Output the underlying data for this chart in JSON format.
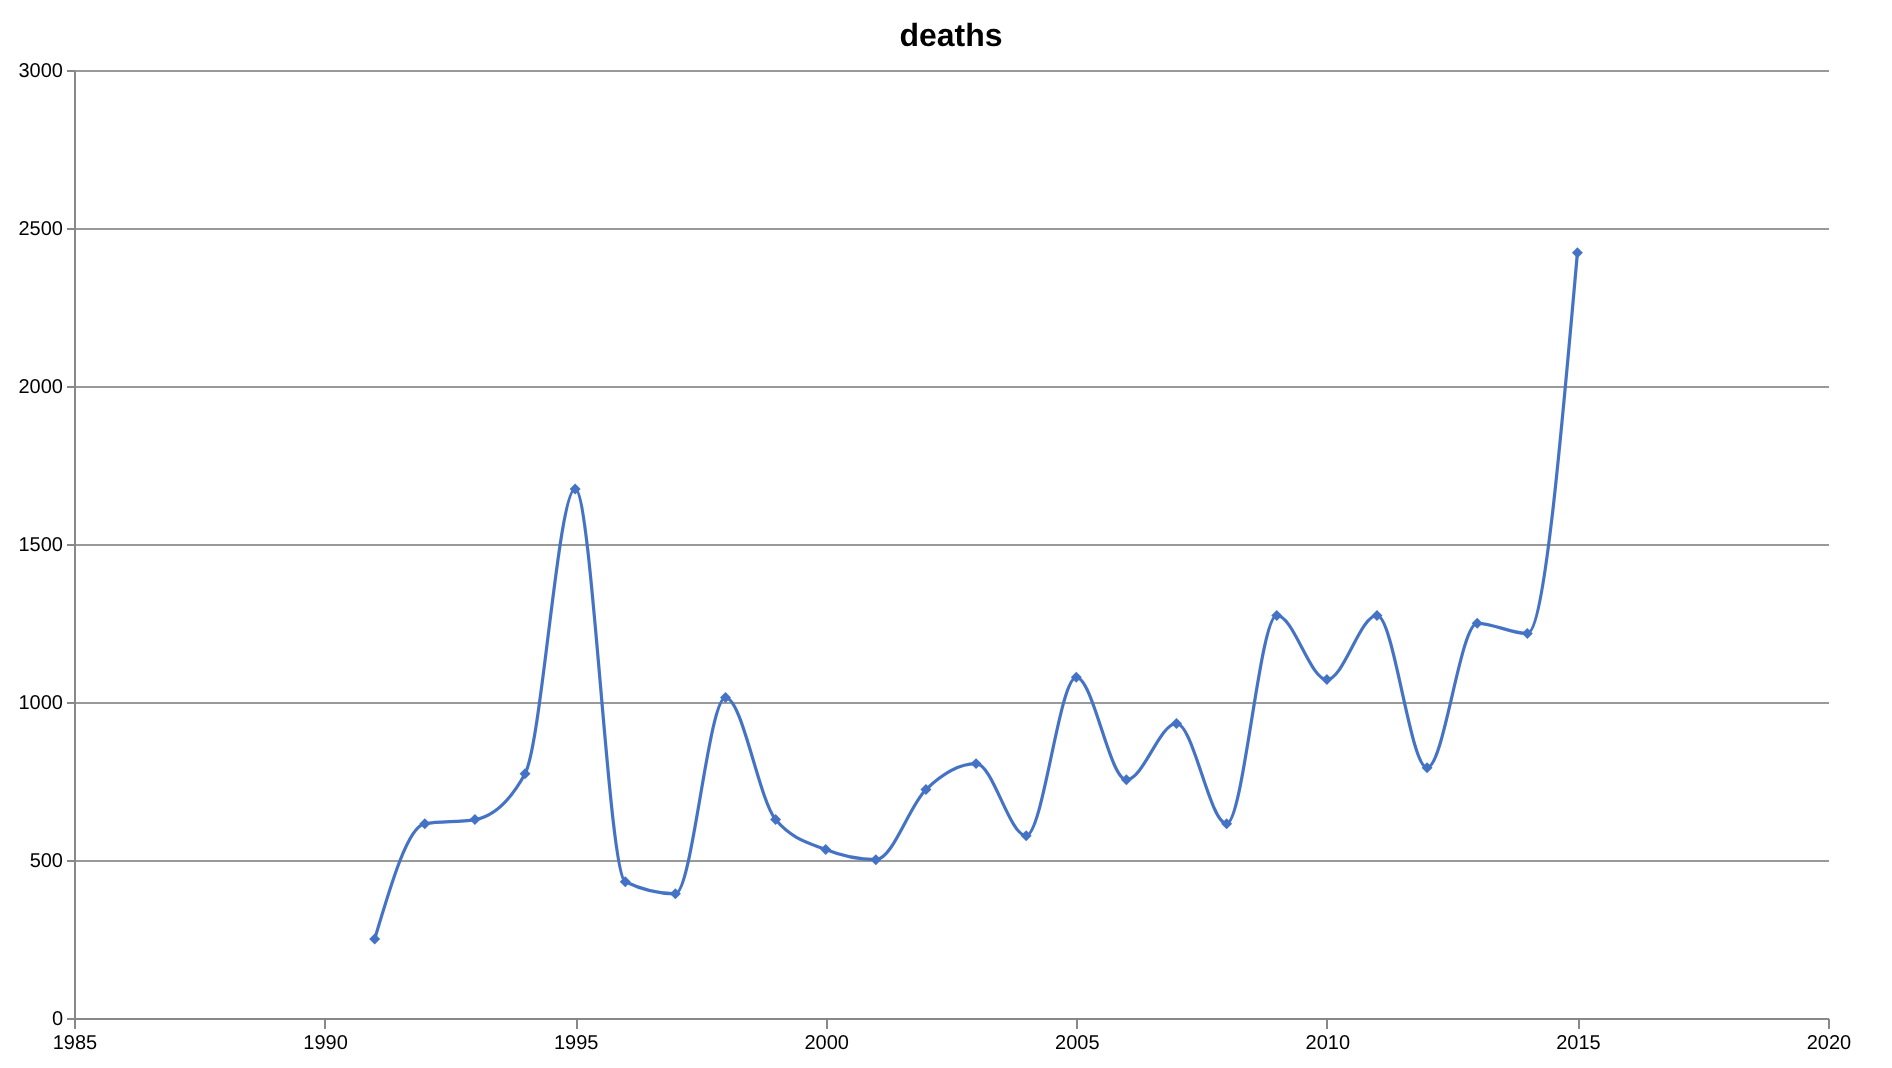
{
  "chart_data": {
    "type": "line",
    "title": "deaths",
    "x": [
      1991,
      1992,
      1993,
      1994,
      1995,
      1996,
      1997,
      1998,
      1999,
      2000,
      2001,
      2002,
      2003,
      2004,
      2005,
      2006,
      2007,
      2008,
      2009,
      2010,
      2011,
      2012,
      2013,
      2014,
      2015
    ],
    "series": [
      {
        "color": "#4472c4",
        "values": [
          250,
          615,
          628,
          773,
          1674,
          431,
          393,
          1014,
          628,
          533,
          501,
          723,
          805,
          577,
          1078,
          754,
          932,
          615,
          1274,
          1071,
          1274,
          792,
          1249,
          1217,
          2422
        ]
      }
    ],
    "xlim": [
      1985,
      2020
    ],
    "xticks": [
      1985,
      1990,
      1995,
      2000,
      2005,
      2010,
      2015,
      2020
    ],
    "ylim": [
      0,
      3000
    ],
    "yticks": [
      0,
      500,
      1000,
      1500,
      2000,
      2500,
      3000
    ],
    "grid": "y",
    "marker": "diamond"
  }
}
